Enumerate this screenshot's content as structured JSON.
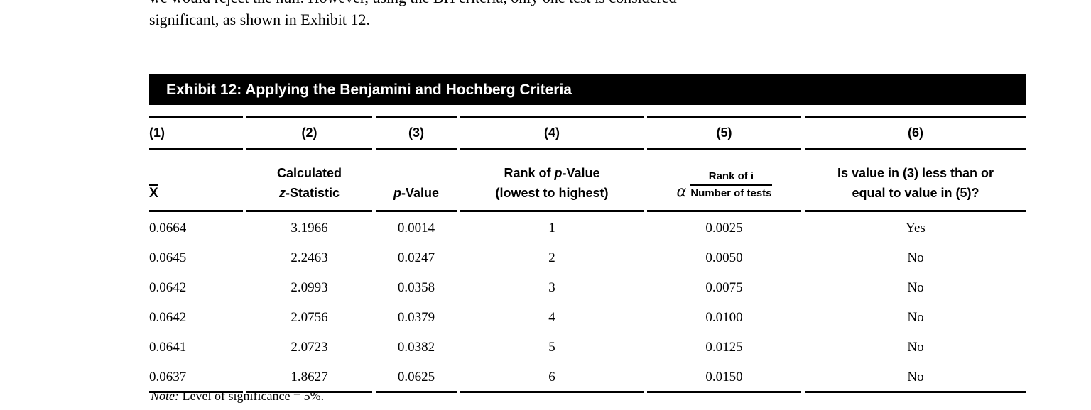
{
  "intro": {
    "line1": "we would reject the null. However, using the BH criteria, only one test is considered",
    "line2": "significant, as shown in Exhibit 12."
  },
  "exhibit": {
    "title": "Exhibit 12: Applying the Benjamini and Hochberg Criteria",
    "bar_color": "#000000",
    "bar_text_color": "#ffffff"
  },
  "table": {
    "column_numbers": [
      "(1)",
      "(2)",
      "(3)",
      "(4)",
      "(5)",
      "(6)"
    ],
    "headers": {
      "col1": "X",
      "col2_line1": "Calculated",
      "col2_italic": "z",
      "col2_rest": "-Statistic",
      "col3_italic": "p",
      "col3_rest": "-Value",
      "col4_pre": "Rank of ",
      "col4_italic": "p",
      "col4_post": "-Value",
      "col4_line2": "(lowest to highest)",
      "col5_alpha": "α",
      "col5_numerator": "Rank of i",
      "col5_denominator": "Number of tests",
      "col6_line1": "Is value in (3) less than or",
      "col6_line2": "equal to value in (5)?"
    },
    "rows": [
      [
        "0.0664",
        "3.1966",
        "0.0014",
        "1",
        "0.0025",
        "Yes"
      ],
      [
        "0.0645",
        "2.2463",
        "0.0247",
        "2",
        "0.0050",
        "No"
      ],
      [
        "0.0642",
        "2.0993",
        "0.0358",
        "3",
        "0.0075",
        "No"
      ],
      [
        "0.0642",
        "2.0756",
        "0.0379",
        "4",
        "0.0100",
        "No"
      ],
      [
        "0.0641",
        "2.0723",
        "0.0382",
        "5",
        "0.0125",
        "No"
      ],
      [
        "0.0637",
        "1.8627",
        "0.0625",
        "6",
        "0.0150",
        "No"
      ]
    ]
  },
  "note": {
    "label": "Note:",
    "text": " Level of significance = 5%."
  }
}
